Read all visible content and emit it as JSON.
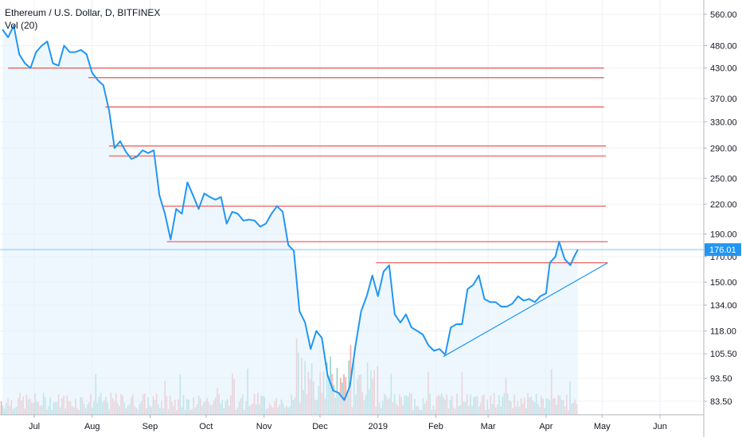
{
  "header": {
    "symbol_line": "Ethereum / U.S. Dollar, D, BITFINEX",
    "volume_label": "Vol (20)"
  },
  "colors": {
    "price_line": "#2196f3",
    "area_fill": "#e3f2fd",
    "resistance": "#ef5350",
    "trendline": "#2196f3",
    "vol_up": "#26a69a",
    "vol_down": "#ef5350",
    "grid": "#eef0f4",
    "axis_border": "#b2b5be",
    "last_price_bg": "#2196f3"
  },
  "chart_data": {
    "type": "line",
    "title": "Ethereum / U.S. Dollar, D, BITFINEX",
    "xlabel": "",
    "ylabel": "",
    "y_scale": "log",
    "y_ticks": [
      560.0,
      480.0,
      430.0,
      370.0,
      330.0,
      290.0,
      250.0,
      220.0,
      190.0,
      170.0,
      150.0,
      134.0,
      118.0,
      105.5,
      93.5,
      83.5
    ],
    "x_ticks": [
      "Jul",
      "Aug",
      "Sep",
      "Oct",
      "Nov",
      "Dec",
      "2019",
      "Feb",
      "Mar",
      "Apr",
      "May",
      "Jun"
    ],
    "last_price": "176.01",
    "grid": true,
    "series": [
      {
        "values": [
          [
            "2018-06-14",
            520
          ],
          [
            "2018-06-17",
            500
          ],
          [
            "2018-06-20",
            530
          ],
          [
            "2018-06-23",
            460
          ],
          [
            "2018-06-26",
            440
          ],
          [
            "2018-06-29",
            430
          ],
          [
            "2018-07-02",
            465
          ],
          [
            "2018-07-05",
            480
          ],
          [
            "2018-07-08",
            490
          ],
          [
            "2018-07-11",
            440
          ],
          [
            "2018-07-14",
            435
          ],
          [
            "2018-07-17",
            480
          ],
          [
            "2018-07-20",
            465
          ],
          [
            "2018-07-23",
            465
          ],
          [
            "2018-07-26",
            470
          ],
          [
            "2018-07-29",
            460
          ],
          [
            "2018-08-01",
            420
          ],
          [
            "2018-08-04",
            405
          ],
          [
            "2018-08-07",
            395
          ],
          [
            "2018-08-10",
            350
          ],
          [
            "2018-08-13",
            290
          ],
          [
            "2018-08-16",
            300
          ],
          [
            "2018-08-19",
            285
          ],
          [
            "2018-08-22",
            275
          ],
          [
            "2018-08-25",
            278
          ],
          [
            "2018-08-28",
            287
          ],
          [
            "2018-08-31",
            283
          ],
          [
            "2018-09-03",
            287
          ],
          [
            "2018-09-06",
            230
          ],
          [
            "2018-09-09",
            210
          ],
          [
            "2018-09-12",
            185
          ],
          [
            "2018-09-15",
            215
          ],
          [
            "2018-09-18",
            210
          ],
          [
            "2018-09-21",
            245
          ],
          [
            "2018-09-24",
            230
          ],
          [
            "2018-09-27",
            215
          ],
          [
            "2018-09-30",
            232
          ],
          [
            "2018-10-03",
            228
          ],
          [
            "2018-10-06",
            225
          ],
          [
            "2018-10-09",
            228
          ],
          [
            "2018-10-12",
            200
          ],
          [
            "2018-10-15",
            212
          ],
          [
            "2018-10-18",
            210
          ],
          [
            "2018-10-21",
            203
          ],
          [
            "2018-10-24",
            204
          ],
          [
            "2018-10-27",
            203
          ],
          [
            "2018-10-30",
            197
          ],
          [
            "2018-11-02",
            200
          ],
          [
            "2018-11-05",
            210
          ],
          [
            "2018-11-08",
            218
          ],
          [
            "2018-11-11",
            212
          ],
          [
            "2018-11-14",
            180
          ],
          [
            "2018-11-17",
            175
          ],
          [
            "2018-11-20",
            130
          ],
          [
            "2018-11-23",
            123
          ],
          [
            "2018-11-26",
            108
          ],
          [
            "2018-11-29",
            118
          ],
          [
            "2018-12-02",
            114
          ],
          [
            "2018-12-05",
            95
          ],
          [
            "2018-12-08",
            88
          ],
          [
            "2018-12-11",
            87
          ],
          [
            "2018-12-14",
            84
          ],
          [
            "2018-12-17",
            90
          ],
          [
            "2018-12-20",
            110
          ],
          [
            "2018-12-23",
            130
          ],
          [
            "2018-12-26",
            140
          ],
          [
            "2018-12-29",
            155
          ],
          [
            "2019-01-01",
            140
          ],
          [
            "2019-01-04",
            158
          ],
          [
            "2019-01-07",
            163
          ],
          [
            "2019-01-10",
            128
          ],
          [
            "2019-01-13",
            123
          ],
          [
            "2019-01-16",
            128
          ],
          [
            "2019-01-19",
            120
          ],
          [
            "2019-01-22",
            118
          ],
          [
            "2019-01-25",
            116
          ],
          [
            "2019-01-28",
            110
          ],
          [
            "2019-01-31",
            107
          ],
          [
            "2019-02-03",
            108
          ],
          [
            "2019-02-06",
            105
          ],
          [
            "2019-02-09",
            120
          ],
          [
            "2019-02-12",
            122
          ],
          [
            "2019-02-15",
            122
          ],
          [
            "2019-02-18",
            145
          ],
          [
            "2019-02-21",
            148
          ],
          [
            "2019-02-24",
            155
          ],
          [
            "2019-02-27",
            138
          ],
          [
            "2019-03-02",
            136
          ],
          [
            "2019-03-05",
            136
          ],
          [
            "2019-03-08",
            133
          ],
          [
            "2019-03-11",
            133
          ],
          [
            "2019-03-14",
            135
          ],
          [
            "2019-03-17",
            140
          ],
          [
            "2019-03-20",
            137
          ],
          [
            "2019-03-23",
            138
          ],
          [
            "2019-03-26",
            136
          ],
          [
            "2019-03-29",
            140
          ],
          [
            "2019-04-01",
            142
          ],
          [
            "2019-04-03",
            165
          ],
          [
            "2019-04-06",
            170
          ],
          [
            "2019-04-08",
            183
          ],
          [
            "2019-04-11",
            168
          ],
          [
            "2019-04-14",
            163
          ],
          [
            "2019-04-16",
            170
          ],
          [
            "2019-04-18",
            176.01
          ]
        ]
      }
    ],
    "horizontal_levels": [
      {
        "value": 430,
        "from": "2018-06-17",
        "to": "2019-05-02"
      },
      {
        "value": 410,
        "from": "2018-07-30",
        "to": "2019-05-02"
      },
      {
        "value": 355,
        "from": "2018-08-08",
        "to": "2019-05-02"
      },
      {
        "value": 293,
        "from": "2018-08-10",
        "to": "2019-05-03"
      },
      {
        "value": 279,
        "from": "2018-08-10",
        "to": "2019-05-03"
      },
      {
        "value": 218,
        "from": "2018-09-08",
        "to": "2019-05-03"
      },
      {
        "value": 183,
        "from": "2018-09-10",
        "to": "2019-05-04"
      },
      {
        "value": 165,
        "from": "2018-12-31",
        "to": "2019-05-04"
      }
    ],
    "trendline": {
      "from": [
        "2019-02-05",
        104
      ],
      "to": [
        "2019-05-04",
        165
      ]
    }
  }
}
